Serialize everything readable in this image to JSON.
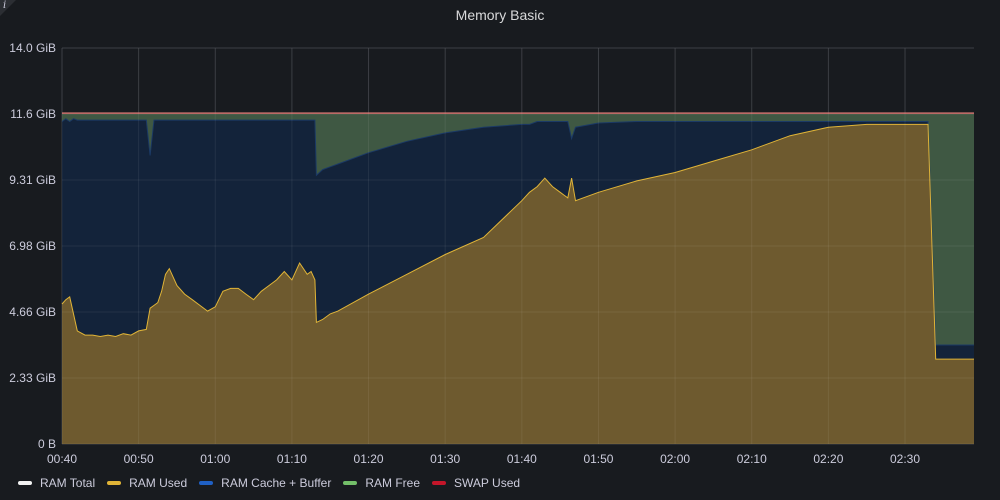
{
  "panel": {
    "title": "Memory Basic",
    "info_icon": "info-icon"
  },
  "colors": {
    "background": "#181b1f",
    "grid": "#2e3136",
    "ram_total": "#f2f2f2",
    "ram_used": "#e0b437",
    "ram_used_fill": "#6e5a2f",
    "ram_cache": "#1f60c4",
    "ram_cache_fill": "#13233a",
    "ram_free": "#73bf69",
    "ram_free_fill": "#3f5843",
    "swap_used": "#c4162a"
  },
  "chart_data": {
    "type": "area",
    "title": "Memory Basic",
    "xlabel": "",
    "ylabel": "",
    "x_ticks": [
      "00:40",
      "00:50",
      "01:00",
      "01:10",
      "01:20",
      "01:30",
      "01:40",
      "01:50",
      "02:00",
      "02:10",
      "02:20",
      "02:30"
    ],
    "y_ticks": [
      "0 B",
      "2.33 GiB",
      "4.66 GiB",
      "6.98 GiB",
      "9.31 GiB",
      "11.6 GiB",
      "14.0 GiB"
    ],
    "y_unit": "GiB",
    "ylim": [
      0,
      14.0
    ],
    "x_range_minutes": [
      0,
      119
    ],
    "x_minutes": [
      0,
      0.5,
      1,
      1.5,
      2,
      3,
      4,
      5,
      6,
      7,
      8,
      9,
      10,
      11,
      11.5,
      12,
      12.5,
      13,
      13.5,
      14,
      15,
      16,
      17,
      18,
      19,
      20,
      21,
      22,
      23,
      24,
      25,
      26,
      27,
      28,
      29,
      30,
      31,
      32,
      32.5,
      33,
      33.2,
      34,
      35,
      36,
      40,
      45,
      50,
      55,
      60,
      61,
      62,
      63,
      64,
      65,
      65.5,
      66,
      66.5,
      67,
      70,
      75,
      80,
      85,
      90,
      95,
      100,
      105,
      110,
      113,
      114,
      114.5,
      115,
      116,
      117,
      118,
      119
    ],
    "series": [
      {
        "name": "RAM Total",
        "values": [
          11.7,
          11.7,
          11.7,
          11.7,
          11.7,
          11.7,
          11.7,
          11.7,
          11.7,
          11.7,
          11.7,
          11.7,
          11.7,
          11.7,
          11.7,
          11.7,
          11.7,
          11.7,
          11.7,
          11.7,
          11.7,
          11.7,
          11.7,
          11.7,
          11.7,
          11.7,
          11.7,
          11.7,
          11.7,
          11.7,
          11.7,
          11.7,
          11.7,
          11.7,
          11.7,
          11.7,
          11.7,
          11.7,
          11.7,
          11.7,
          11.7,
          11.7,
          11.7,
          11.7,
          11.7,
          11.7,
          11.7,
          11.7,
          11.7,
          11.7,
          11.7,
          11.7,
          11.7,
          11.7,
          11.7,
          11.7,
          11.7,
          11.7,
          11.7,
          11.7,
          11.7,
          11.7,
          11.7,
          11.7,
          11.7,
          11.7,
          11.7,
          11.7,
          11.7,
          11.7,
          11.7,
          11.7,
          11.7,
          11.7,
          11.7
        ]
      },
      {
        "name": "RAM Used",
        "values": [
          4.95,
          5.1,
          5.2,
          4.6,
          4.0,
          3.85,
          3.85,
          3.8,
          3.85,
          3.8,
          3.9,
          3.85,
          4.0,
          4.05,
          4.8,
          4.9,
          5.0,
          5.4,
          6.0,
          6.2,
          5.6,
          5.3,
          5.1,
          4.9,
          4.7,
          4.85,
          5.4,
          5.5,
          5.5,
          5.3,
          5.1,
          5.4,
          5.6,
          5.8,
          6.1,
          5.8,
          6.4,
          6.0,
          6.1,
          5.8,
          4.3,
          4.4,
          4.6,
          4.7,
          5.3,
          6.0,
          6.7,
          7.3,
          8.6,
          8.9,
          9.1,
          9.4,
          9.1,
          8.9,
          8.8,
          8.7,
          9.4,
          8.6,
          8.9,
          9.3,
          9.6,
          10.0,
          10.4,
          10.9,
          11.2,
          11.3,
          11.3,
          11.3,
          3.0,
          3.0,
          3.0,
          3.0,
          3.0,
          3.0,
          3.0
        ]
      },
      {
        "name": "RAM Cache + Buffer",
        "values": [
          11.4,
          11.5,
          11.4,
          11.5,
          11.45,
          11.45,
          11.45,
          11.45,
          11.45,
          11.45,
          11.45,
          11.45,
          11.45,
          11.45,
          10.2,
          11.45,
          11.45,
          11.45,
          11.45,
          11.45,
          11.45,
          11.45,
          11.45,
          11.45,
          11.45,
          11.45,
          11.45,
          11.45,
          11.45,
          11.45,
          11.45,
          11.45,
          11.45,
          11.45,
          11.45,
          11.45,
          11.45,
          11.45,
          11.45,
          11.45,
          9.5,
          9.7,
          9.8,
          9.9,
          10.3,
          10.7,
          11.0,
          11.2,
          11.3,
          11.3,
          11.4,
          11.4,
          11.4,
          11.4,
          11.4,
          11.4,
          10.8,
          11.2,
          11.35,
          11.4,
          11.4,
          11.4,
          11.4,
          11.4,
          11.4,
          11.4,
          11.4,
          11.4,
          3.5,
          3.5,
          3.5,
          3.5,
          3.5,
          3.5,
          3.5
        ]
      },
      {
        "name": "RAM Free",
        "values": [
          0.3,
          0.2,
          0.3,
          0.2,
          0.25,
          0.25,
          0.25,
          0.25,
          0.25,
          0.25,
          0.25,
          0.25,
          0.25,
          0.25,
          1.5,
          0.25,
          0.25,
          0.25,
          0.25,
          0.25,
          0.25,
          0.25,
          0.25,
          0.25,
          0.25,
          0.25,
          0.25,
          0.25,
          0.25,
          0.25,
          0.25,
          0.25,
          0.25,
          0.25,
          0.25,
          0.25,
          0.25,
          0.25,
          0.25,
          0.25,
          2.2,
          2.0,
          1.9,
          1.8,
          1.4,
          1.0,
          0.7,
          0.5,
          0.4,
          0.4,
          0.3,
          0.3,
          0.3,
          0.3,
          0.3,
          0.3,
          0.9,
          0.5,
          0.35,
          0.3,
          0.3,
          0.3,
          0.3,
          0.3,
          0.3,
          0.3,
          0.3,
          0.3,
          8.2,
          8.2,
          8.2,
          8.2,
          8.2,
          8.2,
          8.2
        ]
      },
      {
        "name": "SWAP Used",
        "values": [
          0,
          0,
          0,
          0,
          0,
          0,
          0,
          0,
          0,
          0,
          0,
          0,
          0,
          0,
          0,
          0,
          0,
          0,
          0,
          0,
          0,
          0,
          0,
          0,
          0,
          0,
          0,
          0,
          0,
          0,
          0,
          0,
          0,
          0,
          0,
          0,
          0,
          0,
          0,
          0,
          0,
          0,
          0,
          0,
          0,
          0,
          0,
          0,
          0,
          0,
          0,
          0,
          0,
          0,
          0,
          0,
          0,
          0,
          0,
          0,
          0,
          0,
          0,
          0,
          0,
          0,
          0,
          0,
          0,
          0,
          0,
          0,
          0,
          0,
          0
        ]
      }
    ],
    "grid": true,
    "legend_placement": "bottom-left"
  },
  "legend": [
    {
      "label": "RAM Total"
    },
    {
      "label": "RAM Used"
    },
    {
      "label": "RAM Cache + Buffer"
    },
    {
      "label": "RAM Free"
    },
    {
      "label": "SWAP Used"
    }
  ]
}
